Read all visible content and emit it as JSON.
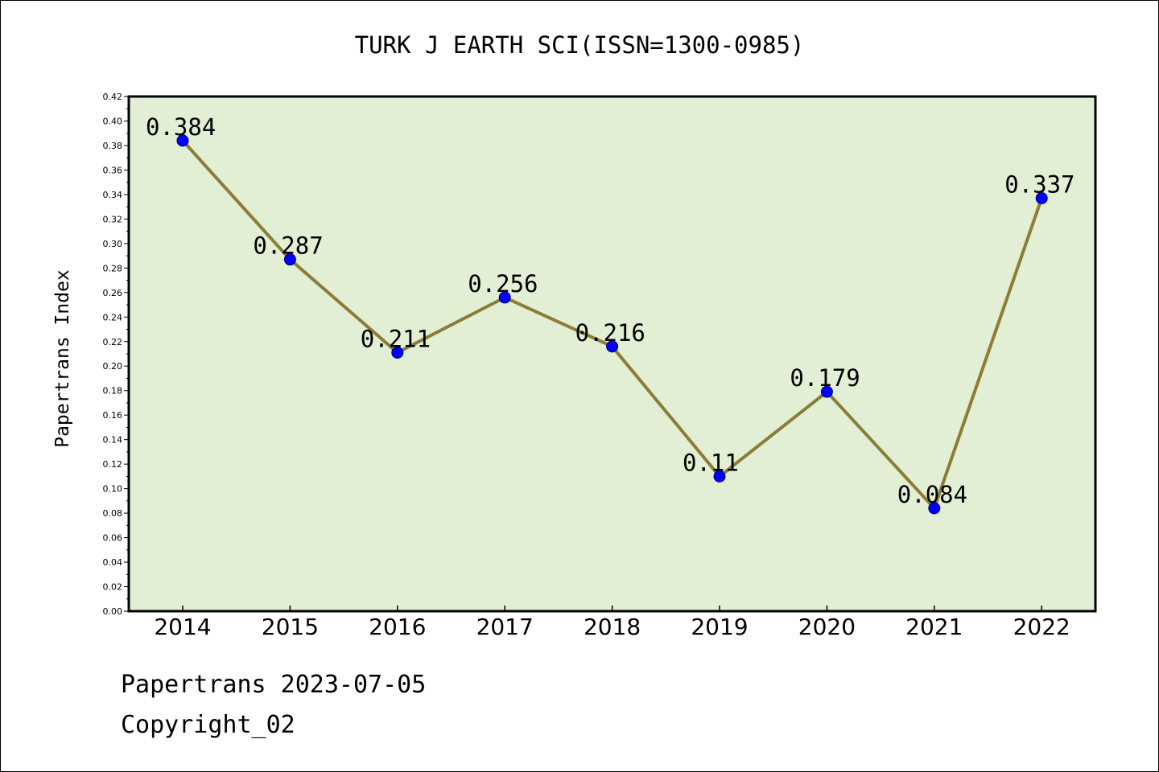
{
  "chart_data": {
    "type": "line",
    "title": "TURK J EARTH SCI(ISSN=1300-0985)",
    "xlabel": "",
    "ylabel": "Papertrans Index",
    "categories": [
      "2014",
      "2015",
      "2016",
      "2017",
      "2018",
      "2019",
      "2020",
      "2021",
      "2022"
    ],
    "series": [
      {
        "values": [
          0.384,
          0.287,
          0.211,
          0.256,
          0.216,
          0.11,
          0.179,
          0.084,
          0.337
        ],
        "labels": [
          "0.384",
          "0.287",
          "0.211",
          "0.256",
          "0.216",
          "0.11",
          "0.179",
          "0.084",
          "0.337"
        ]
      }
    ],
    "ylim": [
      0,
      0.42
    ],
    "yticks": [
      "0.00",
      "0.02",
      "0.04",
      "0.06",
      "0.08",
      "0.10",
      "0.12",
      "0.14",
      "0.16",
      "0.18",
      "0.20",
      "0.22",
      "0.24",
      "0.26",
      "0.28",
      "0.30",
      "0.32",
      "0.34",
      "0.36",
      "0.38",
      "0.40",
      "0.42"
    ],
    "grid": false,
    "colors": {
      "plot_background": "#e2efd5",
      "line": "#8b7d35",
      "marker": "#0000ff"
    }
  },
  "footer": {
    "line1": "Papertrans 2023-07-05",
    "line2": "Copyright_02"
  }
}
